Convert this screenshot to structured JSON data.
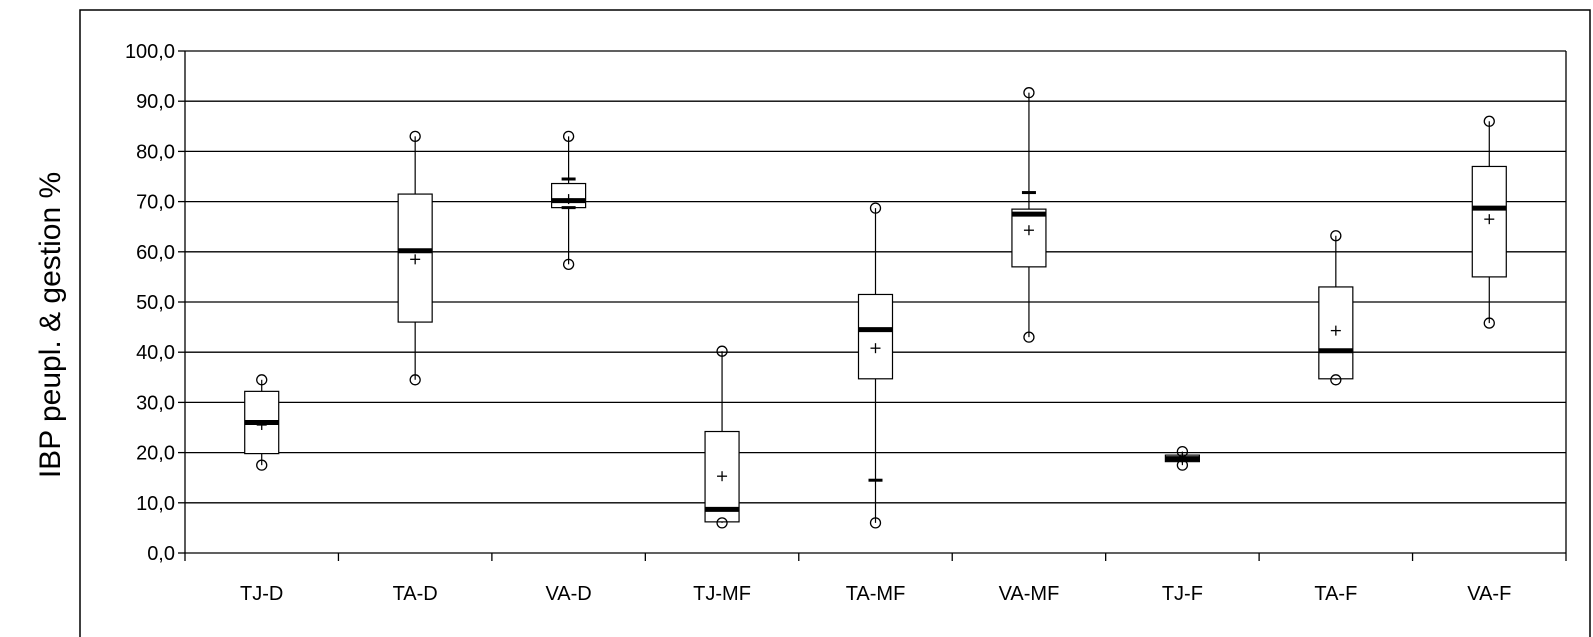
{
  "chart_data": {
    "type": "boxplot",
    "title": "",
    "xlabel": "",
    "ylabel": "IBP peupl. & gestion %",
    "ylim": [
      0,
      100
    ],
    "yticks": [
      "0,0",
      "10,0",
      "20,0",
      "30,0",
      "40,0",
      "50,0",
      "60,0",
      "70,0",
      "80,0",
      "90,0",
      "100,0"
    ],
    "grid": true,
    "categories": [
      "TJ-D",
      "TA-D",
      "VA-D",
      "TJ-MF",
      "TA-MF",
      "VA-MF",
      "TJ-F",
      "TA-F",
      "VA-F"
    ],
    "boxes": [
      {
        "category": "TJ-D",
        "min": 17.5,
        "q1": 19.8,
        "median": 26.0,
        "q3": 32.2,
        "max": 34.5,
        "mean": 25.5,
        "outliers": [
          17.5,
          34.5
        ]
      },
      {
        "category": "TA-D",
        "min": 34.5,
        "q1": 46.0,
        "median": 60.2,
        "q3": 71.5,
        "max": 83.0,
        "mean": 58.5,
        "outliers": [
          34.5,
          83.0
        ]
      },
      {
        "category": "VA-D",
        "min": 57.5,
        "q1": 68.8,
        "median": 70.2,
        "q3": 73.6,
        "max": 83.0,
        "mean": 70.5,
        "outliers": [
          57.5,
          83.0
        ],
        "whisker_caps": [
          68.8,
          74.5
        ]
      },
      {
        "category": "TJ-MF",
        "min": 6.0,
        "q1": 6.2,
        "median": 8.7,
        "q3": 24.2,
        "max": 40.2,
        "mean": 15.3,
        "outliers": [
          6.0,
          40.2
        ]
      },
      {
        "category": "TA-MF",
        "min": 6.0,
        "q1": 34.7,
        "median": 44.5,
        "q3": 51.5,
        "max": 68.7,
        "mean": 40.8,
        "outliers": [
          6.0,
          68.7
        ],
        "whisker_caps": [
          14.5
        ]
      },
      {
        "category": "VA-MF",
        "min": 43.0,
        "q1": 57.0,
        "median": 67.5,
        "q3": 68.5,
        "max": 91.7,
        "mean": 64.3,
        "outliers": [
          43.0,
          91.7
        ],
        "whisker_caps": [
          71.8
        ]
      },
      {
        "category": "TJ-F",
        "min": 17.5,
        "q1": 18.2,
        "median": 18.8,
        "q3": 19.5,
        "max": 20.2,
        "mean": 18.9,
        "outliers": [
          17.5,
          20.2
        ]
      },
      {
        "category": "TA-F",
        "min": 34.5,
        "q1": 34.7,
        "median": 40.3,
        "q3": 53.0,
        "max": 63.2,
        "mean": 44.3,
        "outliers": [
          34.5,
          63.2
        ]
      },
      {
        "category": "VA-F",
        "min": 45.8,
        "q1": 55.0,
        "median": 68.7,
        "q3": 77.0,
        "max": 86.0,
        "mean": 66.5,
        "outliers": [
          45.8,
          86.0
        ]
      }
    ]
  }
}
